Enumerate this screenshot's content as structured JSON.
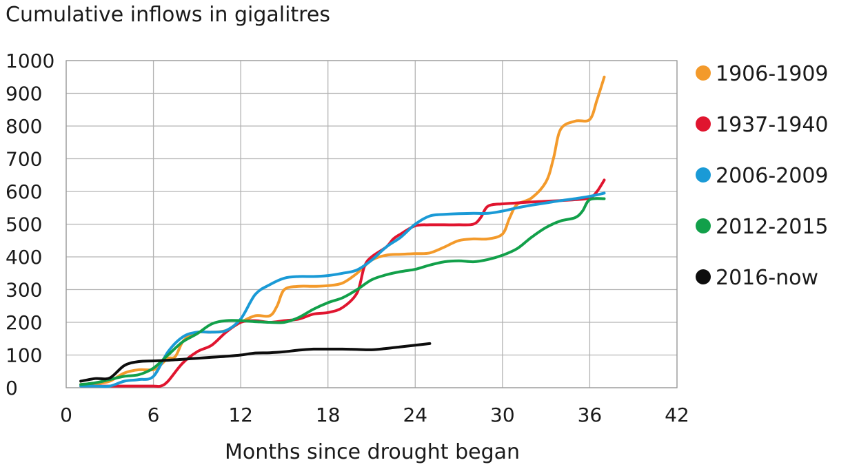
{
  "chart_data": {
    "type": "line",
    "title": "Cumulative inflows in gigalitres",
    "xlabel": "Months since drought began",
    "ylabel": "",
    "xlim": [
      0,
      42
    ],
    "ylim": [
      0,
      1000
    ],
    "xticks": [
      0,
      6,
      12,
      18,
      24,
      30,
      36,
      42
    ],
    "yticks": [
      0,
      100,
      200,
      300,
      400,
      500,
      600,
      700,
      800,
      900,
      1000
    ],
    "grid": true,
    "legend_position": "right",
    "series": [
      {
        "name": "1906-1909",
        "color": "#f39a2b",
        "x": [
          1,
          2,
          3,
          4,
          5,
          6,
          6.5,
          7,
          7.5,
          8,
          8.5,
          9,
          10,
          11,
          12,
          13,
          14,
          14.5,
          15,
          16,
          17,
          18,
          19,
          20,
          21,
          22,
          23,
          24,
          25,
          26,
          27,
          28,
          29,
          30,
          30.5,
          31,
          32,
          33,
          33.5,
          34,
          35,
          36,
          36.5,
          37
        ],
        "y": [
          10,
          12,
          20,
          45,
          55,
          55,
          70,
          90,
          95,
          140,
          160,
          170,
          170,
          175,
          200,
          220,
          220,
          250,
          300,
          310,
          310,
          312,
          320,
          350,
          390,
          405,
          408,
          410,
          412,
          430,
          450,
          455,
          455,
          470,
          520,
          560,
          580,
          630,
          700,
          790,
          815,
          820,
          880,
          950
        ]
      },
      {
        "name": "1937-1940",
        "color": "#e0152f",
        "x": [
          1,
          2,
          3,
          4,
          5,
          6,
          6.5,
          7,
          8,
          9,
          10,
          11,
          12,
          13,
          14,
          15,
          16,
          17,
          18,
          19,
          20,
          20.5,
          21,
          22,
          22.5,
          23,
          24,
          25,
          26,
          27,
          28,
          28.5,
          29,
          30,
          31,
          32,
          33,
          34,
          35,
          36,
          36.5,
          37
        ],
        "y": [
          5,
          5,
          5,
          5,
          5,
          5,
          5,
          20,
          75,
          110,
          130,
          170,
          200,
          205,
          200,
          205,
          210,
          225,
          230,
          245,
          290,
          370,
          400,
          430,
          455,
          470,
          495,
          498,
          498,
          498,
          500,
          520,
          555,
          562,
          565,
          568,
          570,
          572,
          575,
          580,
          600,
          635
        ]
      },
      {
        "name": "2006-2009",
        "color": "#1a9ad6",
        "x": [
          1,
          2,
          3,
          4,
          5,
          6,
          7,
          8,
          9,
          10,
          11,
          12,
          13,
          14,
          15,
          16,
          17,
          18,
          19,
          20,
          21,
          22,
          23,
          24,
          25,
          26,
          27,
          28,
          29,
          30,
          31,
          32,
          33,
          34,
          35,
          36,
          37
        ],
        "y": [
          5,
          5,
          5,
          20,
          25,
          35,
          110,
          155,
          170,
          170,
          175,
          210,
          285,
          315,
          335,
          340,
          340,
          343,
          350,
          360,
          390,
          430,
          460,
          500,
          525,
          530,
          532,
          533,
          533,
          540,
          550,
          558,
          565,
          572,
          578,
          585,
          595
        ]
      },
      {
        "name": "2012-2015",
        "color": "#12a04a",
        "x": [
          1,
          2,
          3,
          4,
          5,
          6,
          7,
          8,
          9,
          10,
          11,
          12,
          13,
          14,
          15,
          16,
          17,
          18,
          19,
          20,
          21,
          22,
          23,
          24,
          25,
          26,
          27,
          28,
          29,
          30,
          31,
          32,
          33,
          34,
          35,
          35.5,
          36,
          37
        ],
        "y": [
          10,
          15,
          25,
          35,
          40,
          60,
          100,
          140,
          165,
          195,
          205,
          205,
          202,
          200,
          200,
          215,
          240,
          260,
          275,
          300,
          330,
          345,
          355,
          362,
          375,
          385,
          388,
          385,
          392,
          405,
          425,
          460,
          490,
          510,
          520,
          540,
          575,
          578
        ]
      },
      {
        "name": "2016-now",
        "color": "#0d0d0d",
        "x": [
          1,
          2,
          3,
          4,
          5,
          6,
          7,
          8,
          9,
          10,
          11,
          12,
          13,
          14,
          15,
          16,
          17,
          18,
          19,
          20,
          21,
          22,
          23,
          24,
          25
        ],
        "y": [
          20,
          28,
          30,
          68,
          80,
          82,
          84,
          87,
          90,
          93,
          96,
          100,
          106,
          107,
          110,
          115,
          118,
          118,
          118,
          117,
          116,
          120,
          125,
          130,
          135
        ]
      }
    ]
  }
}
